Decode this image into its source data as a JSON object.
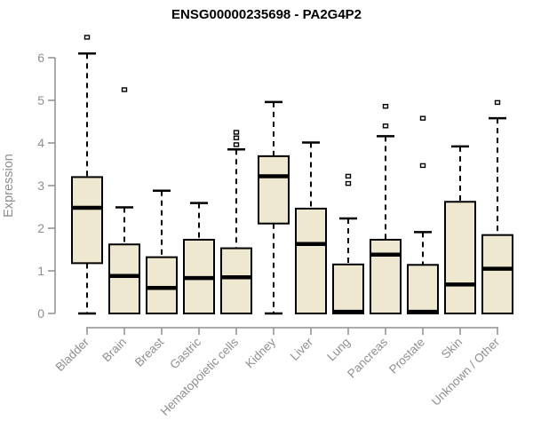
{
  "title": "ENSG00000235698 - PA2G4P2",
  "chart_data": {
    "type": "boxplot",
    "title": "ENSG00000235698 - PA2G4P2",
    "xlabel": "",
    "ylabel": "Expression",
    "ylim": [
      0,
      6.6
    ],
    "yticks": [
      0,
      1,
      2,
      3,
      4,
      5,
      6
    ],
    "grid": "off",
    "legend": "none",
    "categories": [
      "Bladder",
      "Brain",
      "Breast",
      "Gastric",
      "Hematopoietic cells",
      "Kidney",
      "Liver",
      "Lung",
      "Pancreas",
      "Prostate",
      "Skin",
      "Unknown / Other"
    ],
    "boxes": [
      {
        "category": "Bladder",
        "whisker_low": 0,
        "q1": 1.18,
        "median": 2.48,
        "q3": 3.2,
        "whisker_high": 6.1,
        "outliers": [
          6.48
        ]
      },
      {
        "category": "Brain",
        "whisker_low": 0,
        "q1": 0,
        "median": 0.88,
        "q3": 1.62,
        "whisker_high": 2.49,
        "outliers": [
          5.25
        ]
      },
      {
        "category": "Breast",
        "whisker_low": 0,
        "q1": 0,
        "median": 0.6,
        "q3": 1.32,
        "whisker_high": 2.88,
        "outliers": []
      },
      {
        "category": "Gastric",
        "whisker_low": 0,
        "q1": 0,
        "median": 0.83,
        "q3": 1.73,
        "whisker_high": 2.59,
        "outliers": []
      },
      {
        "category": "Hematopoietic cells",
        "whisker_low": 0,
        "q1": 0,
        "median": 0.85,
        "q3": 1.53,
        "whisker_high": 3.85,
        "outliers": [
          4.25,
          4.12,
          3.96
        ]
      },
      {
        "category": "Kidney",
        "whisker_low": 0,
        "q1": 2.11,
        "median": 3.22,
        "q3": 3.69,
        "whisker_high": 4.96,
        "outliers": []
      },
      {
        "category": "Liver",
        "whisker_low": 0,
        "q1": 0,
        "median": 1.63,
        "q3": 2.46,
        "whisker_high": 4.01,
        "outliers": []
      },
      {
        "category": "Lung",
        "whisker_low": 0,
        "q1": 0,
        "median": 0.04,
        "q3": 1.15,
        "whisker_high": 2.23,
        "outliers": [
          3.22,
          3.05
        ]
      },
      {
        "category": "Pancreas",
        "whisker_low": 0,
        "q1": 0,
        "median": 1.38,
        "q3": 1.73,
        "whisker_high": 4.16,
        "outliers": [
          4.86,
          4.4
        ]
      },
      {
        "category": "Prostate",
        "whisker_low": 0,
        "q1": 0,
        "median": 0.04,
        "q3": 1.14,
        "whisker_high": 1.91,
        "outliers": [
          4.58,
          3.47
        ]
      },
      {
        "category": "Skin",
        "whisker_low": 0,
        "q1": 0,
        "median": 0.68,
        "q3": 2.62,
        "whisker_high": 3.92,
        "outliers": []
      },
      {
        "category": "Unknown / Other",
        "whisker_low": 0,
        "q1": 0,
        "median": 1.05,
        "q3": 1.84,
        "whisker_high": 4.58,
        "outliers": [
          4.95
        ]
      }
    ],
    "colors": {
      "box_fill": "#ede8cf",
      "box_border": "#000000",
      "median": "#000000",
      "whisker": "#000000",
      "outlier_border": "#000000",
      "outlier_fill": "#ffffff",
      "axis": "#8f8f8f",
      "tick_label": "#8f8f8f",
      "title": "#000000"
    }
  }
}
